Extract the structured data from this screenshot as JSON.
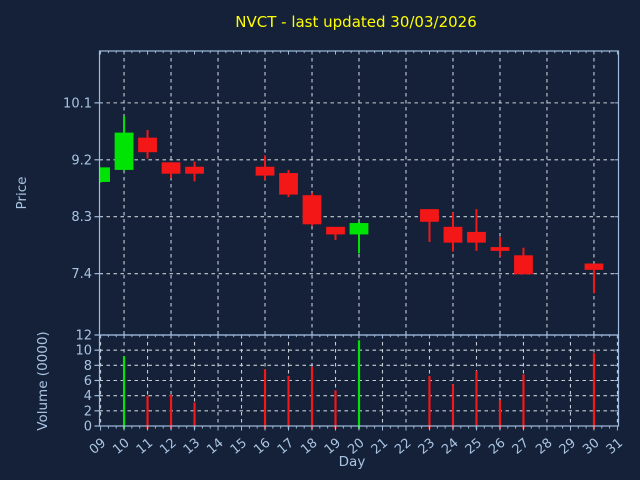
{
  "window": {
    "background_color": "#142138",
    "title_color": "#ffff00",
    "axis_color": "#9fbcdc",
    "label_color": "#a9c3e2",
    "grid_color": "#c6cdd5",
    "up_color": "#00e405",
    "down_color": "#f31717"
  },
  "chart_data": {
    "type": "candlestick",
    "title": "NVCT - last updated 30/03/2026",
    "xlabel": "Day",
    "xtick_labels": [
      "09",
      "10",
      "11",
      "12",
      "13",
      "14",
      "15",
      "16",
      "17",
      "18",
      "19",
      "20",
      "21",
      "22",
      "23",
      "24",
      "25",
      "26",
      "27",
      "28",
      "29",
      "30",
      "31"
    ],
    "xtick_days": [
      9,
      10,
      11,
      12,
      13,
      14,
      15,
      16,
      17,
      18,
      19,
      20,
      21,
      22,
      23,
      24,
      25,
      26,
      27,
      28,
      29,
      30,
      31
    ],
    "xlim": [
      8.955,
      31.045
    ],
    "price_panel": {
      "ylabel": "Price",
      "yticks": [
        7.4,
        8.3,
        9.2,
        10.1
      ],
      "ylim": [
        6.43,
        10.92
      ],
      "grid": "dashed",
      "vertical_grid_days": [
        10,
        12,
        14,
        16,
        18,
        20,
        22,
        24,
        26,
        28,
        30
      ]
    },
    "volume_panel": {
      "ylabel": "Volume (0000)",
      "yticks": [
        0,
        2,
        4,
        6,
        8,
        10,
        12
      ],
      "ylim": [
        0,
        12
      ],
      "grid": "dashed",
      "vertical_grid_days": [
        9,
        10,
        11,
        12,
        13,
        14,
        15,
        16,
        17,
        18,
        19,
        20,
        21,
        22,
        23,
        24,
        25,
        26,
        27,
        28,
        29,
        30,
        31
      ]
    },
    "ohlcv": [
      {
        "day": 9,
        "open": 8.85,
        "high": 9.08,
        "low": 8.84,
        "close": 9.08,
        "volume": null,
        "direction": "up"
      },
      {
        "day": 10,
        "open": 9.04,
        "high": 9.89,
        "low": 9.03,
        "close": 9.63,
        "volume": 9.2,
        "direction": "up"
      },
      {
        "day": 11,
        "open": 9.55,
        "high": 9.67,
        "low": 9.22,
        "close": 9.32,
        "volume": 4.0,
        "direction": "down"
      },
      {
        "day": 12,
        "open": 9.16,
        "high": 9.16,
        "low": 8.91,
        "close": 8.98,
        "volume": 4.1,
        "direction": "down"
      },
      {
        "day": 13,
        "open": 9.09,
        "high": 9.17,
        "low": 8.86,
        "close": 8.98,
        "volume": 3.1,
        "direction": "down"
      },
      {
        "day": 16,
        "open": 9.09,
        "high": 9.27,
        "low": 8.88,
        "close": 8.95,
        "volume": 7.5,
        "direction": "down"
      },
      {
        "day": 17,
        "open": 8.99,
        "high": 9.04,
        "low": 8.61,
        "close": 8.65,
        "volume": 6.6,
        "direction": "down"
      },
      {
        "day": 18,
        "open": 8.64,
        "high": 8.68,
        "low": 8.16,
        "close": 8.18,
        "volume": 7.8,
        "direction": "down"
      },
      {
        "day": 19,
        "open": 8.14,
        "high": 8.14,
        "low": 7.93,
        "close": 8.02,
        "volume": 4.7,
        "direction": "down"
      },
      {
        "day": 20,
        "open": 8.02,
        "high": 8.22,
        "low": 7.72,
        "close": 8.2,
        "volume": 11.3,
        "direction": "up"
      },
      {
        "day": 23,
        "open": 8.42,
        "high": 8.42,
        "low": 7.9,
        "close": 8.22,
        "volume": 6.6,
        "direction": "down"
      },
      {
        "day": 24,
        "open": 8.14,
        "high": 8.37,
        "low": 7.75,
        "close": 7.89,
        "volume": 5.5,
        "direction": "down"
      },
      {
        "day": 25,
        "open": 8.06,
        "high": 8.42,
        "low": 7.76,
        "close": 7.89,
        "volume": 7.3,
        "direction": "down"
      },
      {
        "day": 26,
        "open": 7.82,
        "high": 7.98,
        "low": 7.67,
        "close": 7.76,
        "volume": 3.4,
        "direction": "down"
      },
      {
        "day": 27,
        "open": 7.69,
        "high": 7.81,
        "low": 7.39,
        "close": 7.39,
        "volume": 6.8,
        "direction": "down"
      },
      {
        "day": 30,
        "open": 7.56,
        "high": 7.56,
        "low": 7.09,
        "close": 7.46,
        "volume": 9.6,
        "direction": "down"
      }
    ]
  }
}
